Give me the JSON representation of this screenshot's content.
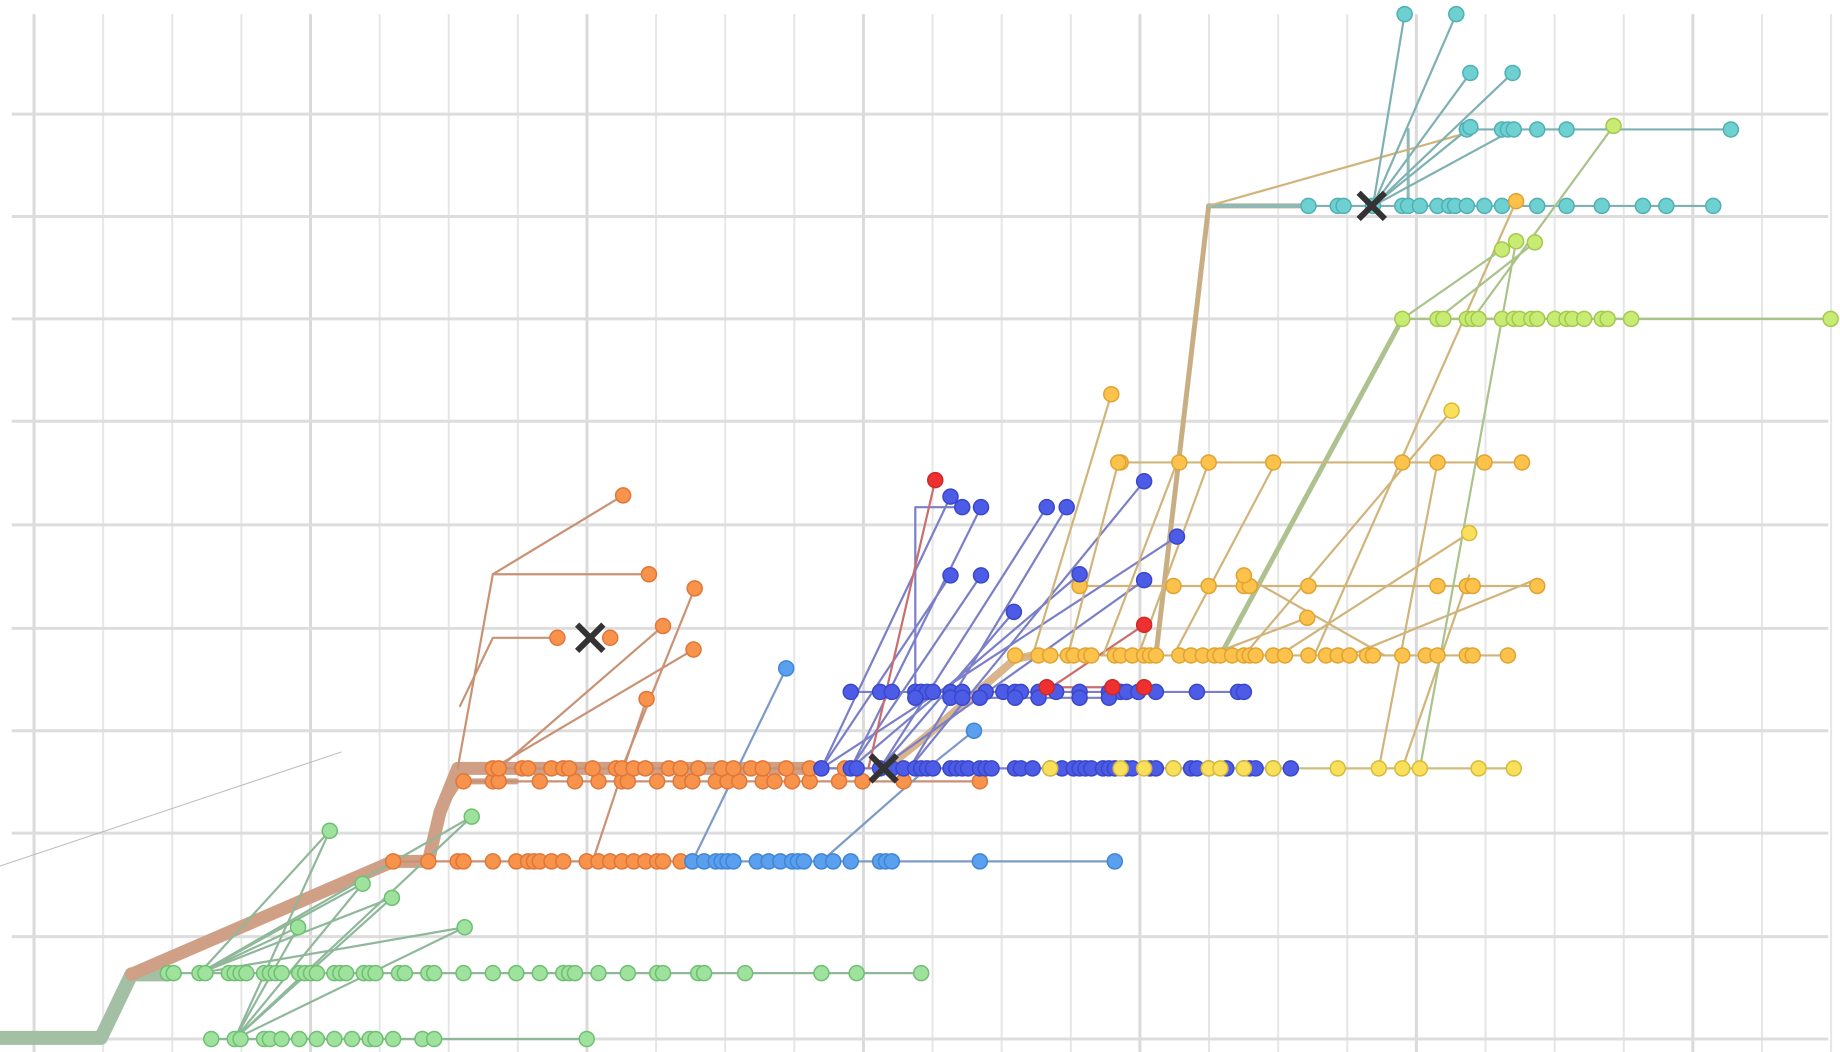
{
  "chart_data": {
    "type": "scatter",
    "title": "",
    "xlabel": "",
    "ylabel": "",
    "grid": true,
    "legend": "none",
    "colors": {
      "green": "#9ee29e",
      "orange": "#f7934a",
      "light_blue": "#5aa0ee",
      "blue": "#4d5ce6",
      "red": "#ef3030",
      "yellow_orange": "#fcc24c",
      "yellow": "#fae05a",
      "lime": "#c8eb74",
      "teal": "#6fd0d2",
      "marker": "#333333"
    },
    "icons": [
      "cross-marker-icon"
    ],
    "lanes": [
      {
        "name": "green-1",
        "color": "green",
        "xs": [
          180,
          200,
          205,
          225,
          230,
          240,
          255,
          270,
          285,
          300,
          315,
          320,
          335,
          360,
          370,
          500
        ]
      },
      {
        "name": "green-2",
        "color": "green",
        "xs": [
          143,
          148,
          170,
          175,
          195,
          200,
          205,
          210,
          225,
          230,
          235,
          240,
          255,
          260,
          265,
          270,
          285,
          290,
          295,
          310,
          315,
          320,
          340,
          345,
          365,
          370,
          395,
          420,
          440,
          460,
          480,
          485,
          490,
          510,
          535,
          560,
          565,
          595,
          600,
          635,
          700,
          730,
          785
        ]
      },
      {
        "name": "orange-1",
        "color": "orange",
        "xs": [
          335,
          365,
          390,
          395,
          420,
          440,
          450,
          455,
          460,
          470,
          480,
          500,
          510,
          520,
          530,
          540,
          550,
          560,
          565,
          580,
          590
        ]
      },
      {
        "name": "light-blue-1",
        "color": "light_blue",
        "xs": [
          590,
          600,
          610,
          615,
          620,
          625,
          645,
          655,
          665,
          675,
          680,
          685,
          700,
          710,
          725,
          750,
          755,
          760,
          835,
          950
        ]
      },
      {
        "name": "orange-2",
        "color": "orange",
        "xs": [
          395,
          420,
          425,
          460,
          490,
          510,
          530,
          535,
          560,
          580,
          590,
          610,
          620,
          630,
          650,
          660,
          675,
          690,
          715,
          735,
          770,
          835
        ]
      },
      {
        "name": "orange-3",
        "color": "orange",
        "xs": [
          420,
          425,
          445,
          450,
          470,
          480,
          485,
          505,
          525,
          530,
          540,
          550,
          570,
          580,
          595,
          615,
          625,
          640,
          650,
          670,
          690,
          700,
          720,
          725
        ]
      },
      {
        "name": "blue-1",
        "color": "blue",
        "xs": [
          700,
          725,
          730,
          750,
          760,
          770,
          780,
          785,
          790,
          795,
          810,
          815,
          820,
          825,
          835,
          840,
          845,
          865,
          870,
          880,
          895,
          905,
          915,
          920,
          925,
          930,
          940,
          945,
          950,
          960,
          965,
          980,
          985,
          1000,
          1015,
          1020,
          1030,
          1045,
          1060,
          1065,
          1070,
          1085,
          1100
        ]
      },
      {
        "name": "yellow-1",
        "color": "yellow",
        "xs": [
          895,
          955,
          975,
          1000,
          1030,
          1040,
          1060,
          1085,
          1140,
          1175,
          1195,
          1210,
          1260,
          1290
        ]
      },
      {
        "name": "blue-2",
        "color": "blue",
        "xs": [
          725,
          750,
          760,
          780,
          785,
          790,
          795,
          810,
          820,
          840,
          855,
          865,
          870,
          885,
          900,
          920,
          945,
          950,
          955,
          960,
          970,
          985,
          1020,
          1055,
          1060
        ]
      },
      {
        "name": "blue-3",
        "color": "blue",
        "xs": [
          780,
          810,
          820,
          835,
          865,
          885,
          920,
          945
        ]
      },
      {
        "name": "red-1",
        "color": "red",
        "xs": [
          892,
          948,
          975
        ]
      },
      {
        "name": "yellow-orange-1",
        "color": "yellow_orange",
        "xs": [
          865,
          885,
          895,
          910,
          915,
          925,
          930,
          950,
          955,
          965,
          975,
          980,
          985,
          1005,
          1015,
          1025,
          1035,
          1040,
          1050,
          1060,
          1065,
          1070,
          1085,
          1095,
          1115,
          1130,
          1140,
          1150,
          1165,
          1170,
          1195,
          1215,
          1225,
          1250,
          1255,
          1285
        ]
      },
      {
        "name": "yellow-orange-2",
        "color": "yellow_orange",
        "xs": [
          920,
          1000,
          1030,
          1060,
          1065,
          1115,
          1225,
          1250,
          1255,
          1310
        ]
      },
      {
        "name": "yellow-orange-3",
        "color": "yellow_orange",
        "xs": [
          955,
          1005,
          1030,
          1085,
          1195,
          1225,
          1265,
          1297
        ]
      },
      {
        "name": "lime-1",
        "color": "lime",
        "xs": [
          1195,
          1225,
          1230,
          1250,
          1255,
          1260,
          1280,
          1290,
          1295,
          1305,
          1310,
          1325,
          1335,
          1340,
          1350,
          1365,
          1370,
          1390,
          1560
        ]
      },
      {
        "name": "teal-1",
        "color": "teal",
        "xs": [
          1115,
          1140,
          1145,
          1170,
          1195,
          1200,
          1210,
          1225,
          1235,
          1240,
          1250,
          1265,
          1280,
          1310,
          1335,
          1365,
          1400,
          1420,
          1460
        ]
      },
      {
        "name": "teal-2",
        "color": "teal",
        "xs": [
          1250,
          1280,
          1285,
          1290,
          1310,
          1335,
          1475
        ]
      }
    ],
    "markers": 3
  }
}
